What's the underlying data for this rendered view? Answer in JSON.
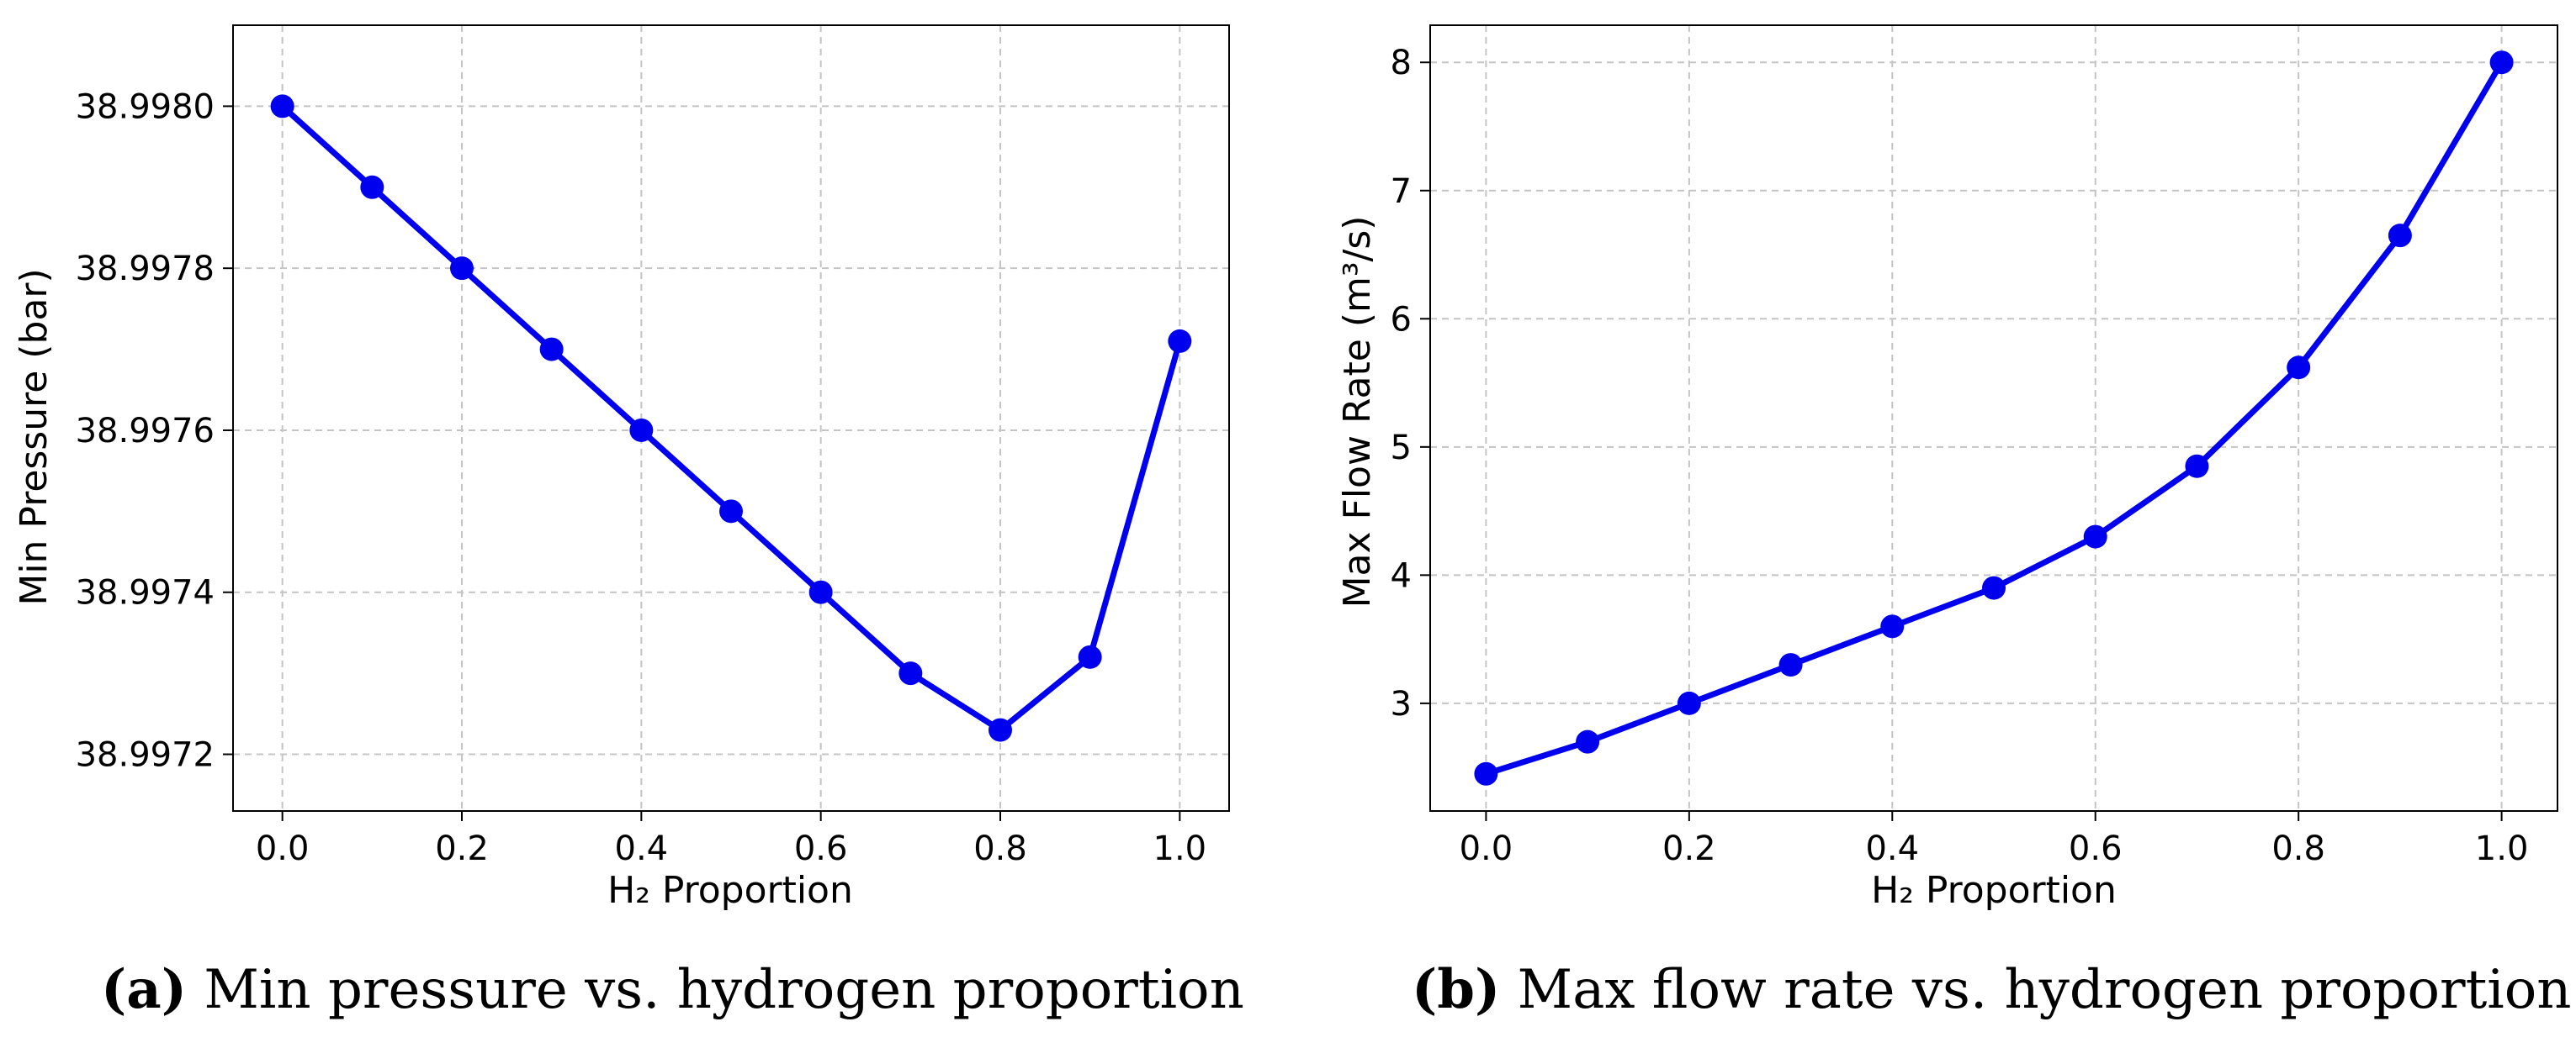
{
  "chart_data": [
    {
      "type": "line",
      "title": "",
      "xlabel": "H₂ Proportion",
      "ylabel": "Min Pressure (bar)",
      "x": [
        0.0,
        0.1,
        0.2,
        0.3,
        0.4,
        0.5,
        0.6,
        0.7,
        0.8,
        0.9,
        1.0
      ],
      "series": [
        {
          "name": "Min Pressure",
          "values": [
            38.998,
            38.9979,
            38.9978,
            38.9977,
            38.9976,
            38.9975,
            38.9974,
            38.9973,
            38.99723,
            38.99732,
            38.99771
          ]
        }
      ],
      "xlim": [
        -0.055,
        1.055
      ],
      "ylim": [
        38.99713,
        38.9981
      ],
      "xticks": [
        0.0,
        0.2,
        0.4,
        0.6,
        0.8,
        1.0
      ],
      "xtick_labels": [
        "0.0",
        "0.2",
        "0.4",
        "0.6",
        "0.8",
        "1.0"
      ],
      "yticks": [
        38.9972,
        38.9974,
        38.9976,
        38.9978,
        38.998
      ],
      "ytick_labels": [
        "38.9972",
        "38.9974",
        "38.9976",
        "38.9978",
        "38.9980"
      ],
      "grid": true,
      "color": "#0000ee"
    },
    {
      "type": "line",
      "title": "",
      "xlabel": "H₂ Proportion",
      "ylabel": "Max Flow Rate (m³/s)",
      "x": [
        0.0,
        0.1,
        0.2,
        0.3,
        0.4,
        0.5,
        0.6,
        0.7,
        0.8,
        0.9,
        1.0
      ],
      "series": [
        {
          "name": "Max Flow Rate",
          "values": [
            2.45,
            2.7,
            3.0,
            3.3,
            3.6,
            3.9,
            4.3,
            4.85,
            5.62,
            6.65,
            8.0
          ]
        }
      ],
      "xlim": [
        -0.055,
        1.055
      ],
      "ylim": [
        2.16,
        8.29
      ],
      "xticks": [
        0.0,
        0.2,
        0.4,
        0.6,
        0.8,
        1.0
      ],
      "xtick_labels": [
        "0.0",
        "0.2",
        "0.4",
        "0.6",
        "0.8",
        "1.0"
      ],
      "yticks": [
        3,
        4,
        5,
        6,
        7,
        8
      ],
      "ytick_labels": [
        "3",
        "4",
        "5",
        "6",
        "7",
        "8"
      ],
      "grid": true,
      "color": "#0000ee"
    }
  ],
  "captions": [
    {
      "tag": "(a)",
      "text": " Min pressure vs. hydrogen proportion"
    },
    {
      "tag": "(b)",
      "text": " Max flow rate vs. hydrogen proportion"
    }
  ]
}
